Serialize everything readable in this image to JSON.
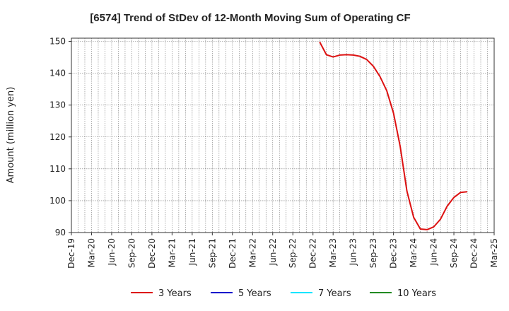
{
  "chart_data": {
    "type": "line",
    "title": "[6574]  Trend of StDev of 12-Month Moving Sum of Operating CF",
    "xlabel": "",
    "ylabel": "Amount (million yen)",
    "ylim": [
      90,
      151
    ],
    "yticks": [
      90,
      100,
      110,
      120,
      130,
      140,
      150
    ],
    "x_tick_labels": [
      "Dec-19",
      "Mar-20",
      "Jun-20",
      "Sep-20",
      "Dec-20",
      "Mar-21",
      "Jun-21",
      "Sep-21",
      "Dec-21",
      "Mar-22",
      "Jun-22",
      "Sep-22",
      "Dec-22",
      "Mar-23",
      "Jun-23",
      "Sep-23",
      "Dec-23",
      "Mar-24",
      "Jun-24",
      "Sep-24",
      "Dec-24",
      "Mar-25"
    ],
    "grid": true,
    "legend_position": "bottom",
    "series": [
      {
        "name": "3 Years",
        "color": "#dd1111",
        "x": [
          "Jan-23",
          "Feb-23",
          "Mar-23",
          "Apr-23",
          "May-23",
          "Jun-23",
          "Jul-23",
          "Aug-23",
          "Sep-23",
          "Oct-23",
          "Nov-23",
          "Dec-23",
          "Jan-24",
          "Feb-24",
          "Mar-24",
          "Apr-24",
          "May-24",
          "Jun-24",
          "Jul-24",
          "Aug-24",
          "Sep-24",
          "Oct-24",
          "Nov-24",
          "Dec-24"
        ],
        "values": [
          149.8,
          145.8,
          145.1,
          145.7,
          145.8,
          145.7,
          145.3,
          144.3,
          142.2,
          138.9,
          134.5,
          127.5,
          117.0,
          103.0,
          94.8,
          91.1,
          90.9,
          91.8,
          94.2,
          98.3,
          101.0,
          102.6,
          102.8,
          null
        ]
      },
      {
        "name": "5 Years",
        "color": "#0000cc",
        "x": [],
        "values": []
      },
      {
        "name": "7 Years",
        "color": "#00e5ff",
        "x": [],
        "values": []
      },
      {
        "name": "10 Years",
        "color": "#228b22",
        "x": [],
        "values": []
      }
    ]
  }
}
